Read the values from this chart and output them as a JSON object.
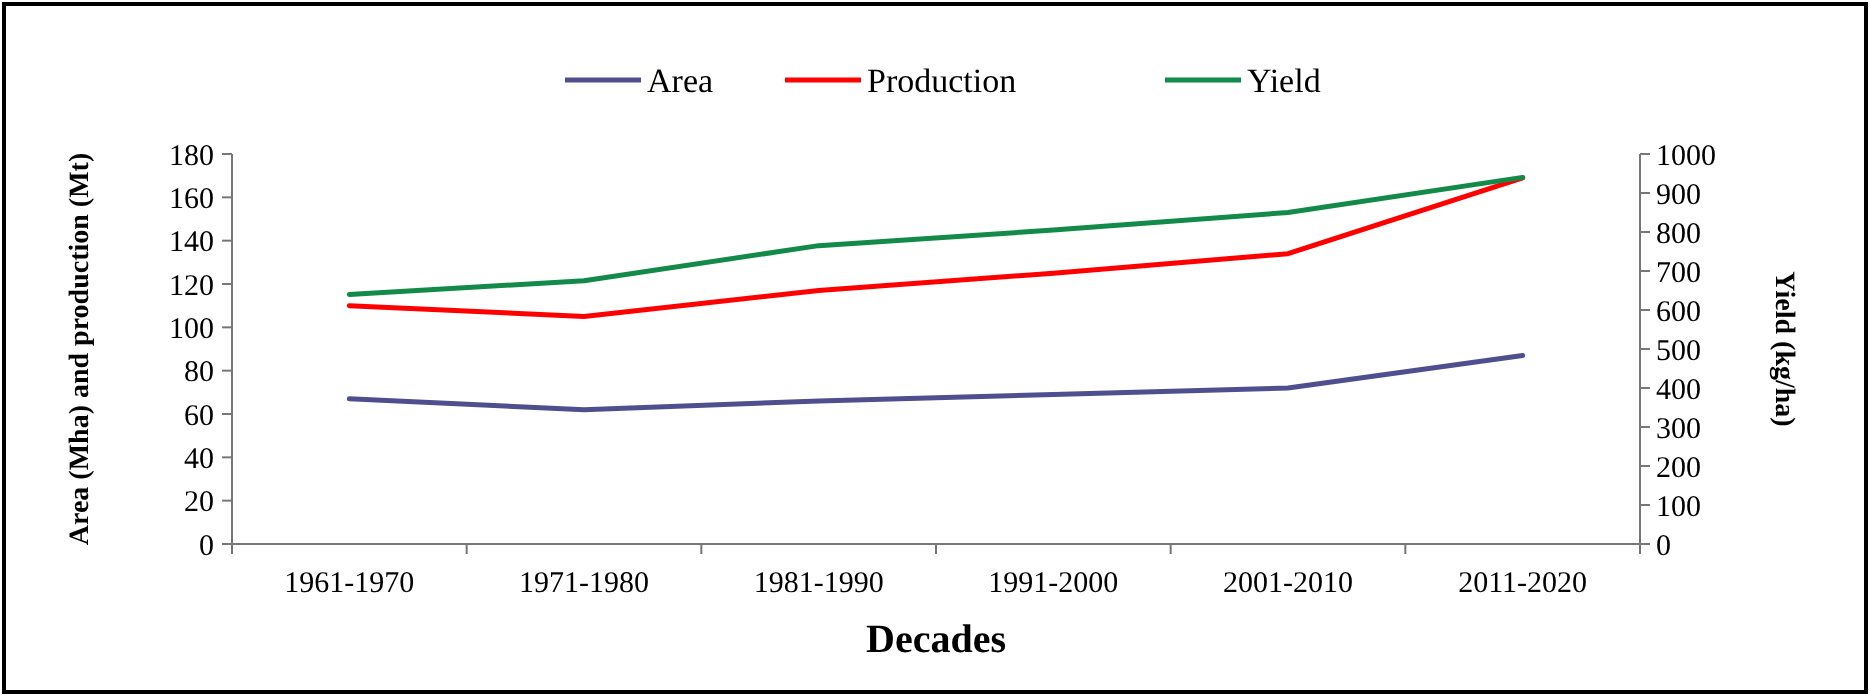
{
  "chart_data": {
    "type": "line",
    "xlabel": "Decades",
    "ylabel": "Area (Mha) and production (Mt)",
    "y2label": "Yield (kg/ha)",
    "categories": [
      "1961-1970",
      "1971-1980",
      "1981-1990",
      "1991-2000",
      "2001-2010",
      "2011-2020"
    ],
    "series": [
      {
        "name": "Area",
        "color": "#4f4f8f",
        "values": [
          67,
          62,
          66,
          69,
          72,
          87
        ]
      },
      {
        "name": "Production",
        "color": "#ff0000",
        "values": [
          110,
          105,
          117,
          125,
          134,
          169
        ]
      },
      {
        "name": "Yield",
        "color": "#138a4a",
        "axis": "y2",
        "values": [
          640,
          675,
          765,
          805,
          850,
          940
        ]
      }
    ],
    "ylim": [
      0,
      180
    ],
    "yticks": [
      0,
      20,
      40,
      60,
      80,
      100,
      120,
      140,
      160,
      180
    ],
    "y2lim": [
      0,
      1000
    ],
    "y2ticks": [
      0,
      100,
      200,
      300,
      400,
      500,
      600,
      700,
      800,
      900,
      1000
    ],
    "legend": "top",
    "grid": false,
    "marker": "none",
    "line_style": "solid"
  }
}
